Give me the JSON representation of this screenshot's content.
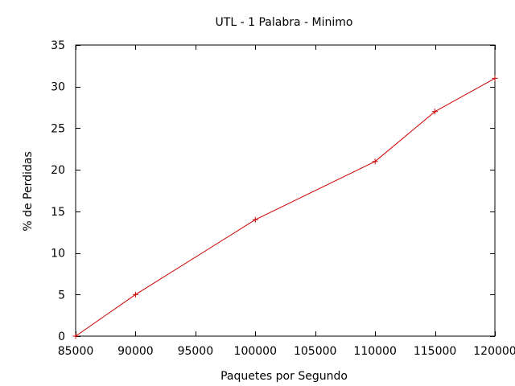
{
  "chart_data": {
    "type": "line",
    "title": "UTL - 1 Palabra - Minimo",
    "xlabel": "Paquetes por Segundo",
    "ylabel": "% de Perdidas",
    "xlim": [
      85000,
      120000
    ],
    "ylim": [
      0,
      35
    ],
    "x_ticks": [
      85000,
      90000,
      95000,
      100000,
      105000,
      110000,
      115000,
      120000
    ],
    "y_ticks": [
      0,
      5,
      10,
      15,
      20,
      25,
      30,
      35
    ],
    "grid": false,
    "legend": "none",
    "series": [
      {
        "color": "#cc0000",
        "marker": "plus",
        "x": [
          85000,
          90000,
          100000,
          110000,
          115000,
          120000
        ],
        "y": [
          0,
          5,
          14,
          21,
          27,
          31
        ]
      }
    ]
  }
}
